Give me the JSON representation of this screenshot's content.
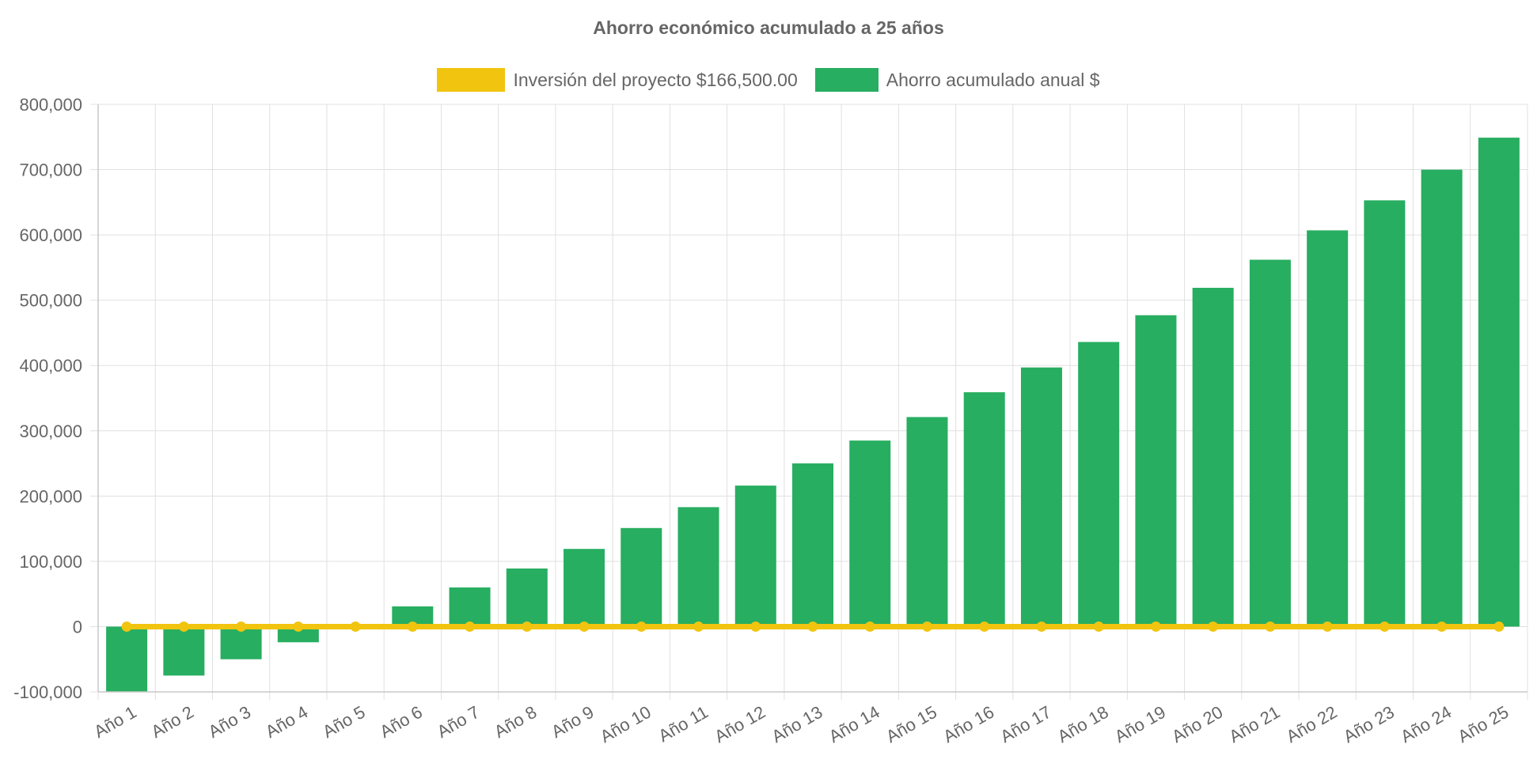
{
  "chart_data": {
    "type": "bar",
    "title": "Ahorro económico acumulado a 25 años",
    "categories": [
      "Año 1",
      "Año 2",
      "Año 3",
      "Año 4",
      "Año 5",
      "Año 6",
      "Año 7",
      "Año 8",
      "Año 9",
      "Año 10",
      "Año 11",
      "Año 12",
      "Año 13",
      "Año 14",
      "Año 15",
      "Año 16",
      "Año 17",
      "Año 18",
      "Año 19",
      "Año 20",
      "Año 21",
      "Año 22",
      "Año 23",
      "Año 24",
      "Año 25"
    ],
    "series": [
      {
        "name": "Inversión del proyecto $166,500.00",
        "type": "line",
        "color": "#f1c40f",
        "values": [
          0,
          0,
          0,
          0,
          0,
          0,
          0,
          0,
          0,
          0,
          0,
          0,
          0,
          0,
          0,
          0,
          0,
          0,
          0,
          0,
          0,
          0,
          0,
          0,
          0
        ]
      },
      {
        "name": "Ahorro acumulado anual $",
        "type": "bar",
        "color": "#27ae60",
        "values": [
          -100000,
          -75000,
          -50000,
          -24000,
          2000,
          31000,
          60000,
          89000,
          119000,
          151000,
          183000,
          216000,
          250000,
          285000,
          321000,
          359000,
          397000,
          436000,
          477000,
          519000,
          562000,
          607000,
          653000,
          700000,
          749000
        ]
      }
    ],
    "ylim": [
      -100000,
      800000
    ],
    "yticks": [
      "800,000",
      "700,000",
      "600,000",
      "500,000",
      "400,000",
      "300,000",
      "200,000",
      "100,000",
      "0",
      "-100,000"
    ],
    "ytick_values": [
      800000,
      700000,
      600000,
      500000,
      400000,
      300000,
      200000,
      100000,
      0,
      -100000
    ],
    "grid": true,
    "legend_position": "top-center",
    "xlabel": "",
    "ylabel": ""
  }
}
